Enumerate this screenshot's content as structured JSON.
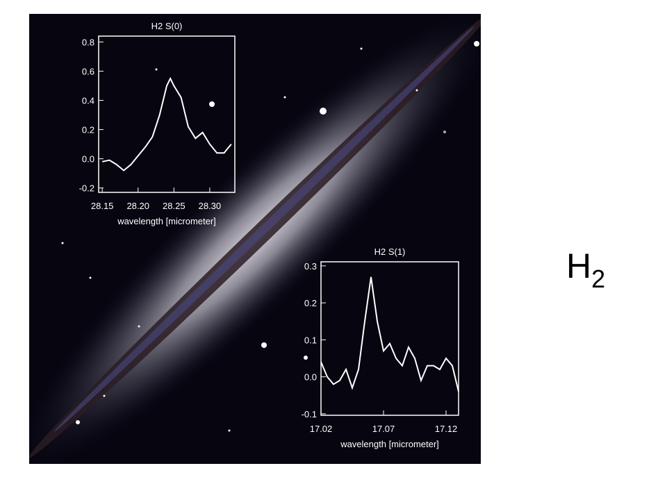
{
  "chart_data": [
    {
      "type": "line",
      "title": "H2 S(0)",
      "xlabel": "wavelength [micrometer]",
      "color": "#ffffff",
      "x": [
        28.15,
        28.16,
        28.17,
        28.18,
        28.19,
        28.2,
        28.21,
        28.22,
        28.23,
        28.24,
        28.245,
        28.25,
        28.26,
        28.27,
        28.28,
        28.29,
        28.3,
        28.31,
        28.32,
        28.33
      ],
      "values": [
        -0.02,
        -0.01,
        -0.04,
        -0.08,
        -0.04,
        0.02,
        0.08,
        0.15,
        0.3,
        0.5,
        0.55,
        0.5,
        0.42,
        0.22,
        0.14,
        0.18,
        0.1,
        0.04,
        0.04,
        0.1
      ],
      "xlim": [
        28.145,
        28.335
      ],
      "ylim": [
        -0.23,
        0.84
      ],
      "xticks": [
        28.15,
        {
          "value": 28.2,
          "label": "28.20"
        },
        28.25,
        {
          "value": 28.3,
          "label": "28.30"
        }
      ],
      "yticks": [
        -0.2,
        {
          "value": 0,
          "label": "0.0"
        },
        0.2,
        0.4,
        0.6,
        0.8
      ]
    },
    {
      "type": "line",
      "title": "H2 S(1)",
      "xlabel": "wavelength [micrometer]",
      "color": "#ffffff",
      "x": [
        17.02,
        17.025,
        17.03,
        17.035,
        17.04,
        17.045,
        17.05,
        17.055,
        17.06,
        17.065,
        17.07,
        17.075,
        17.08,
        17.085,
        17.09,
        17.095,
        17.1,
        17.105,
        17.11,
        17.115,
        17.12,
        17.125,
        17.13
      ],
      "values": [
        0.04,
        0.0,
        -0.02,
        -0.01,
        0.02,
        -0.03,
        0.02,
        0.15,
        0.27,
        0.15,
        0.07,
        0.09,
        0.05,
        0.03,
        0.08,
        0.05,
        -0.01,
        0.03,
        0.03,
        0.02,
        0.05,
        0.03,
        -0.04
      ],
      "xlim": [
        17.02,
        17.13
      ],
      "ylim": [
        -0.104,
        0.311
      ],
      "xticks": [
        17.02,
        17.07,
        17.12
      ],
      "yticks": [
        -0.1,
        {
          "value": 0,
          "label": "0.0"
        },
        0.1,
        0.2,
        0.3
      ]
    }
  ],
  "label": {
    "text": "H",
    "subscript": "2"
  }
}
